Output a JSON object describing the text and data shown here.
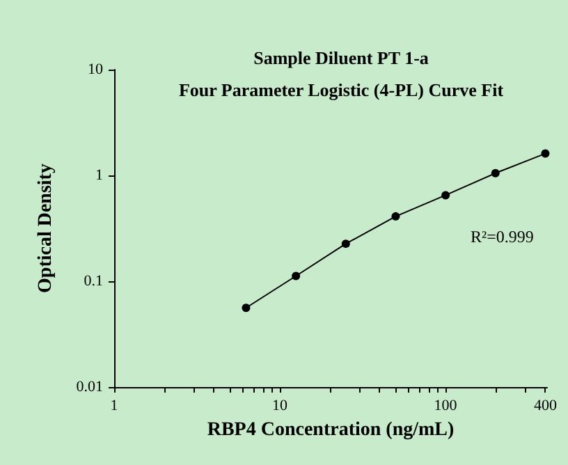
{
  "chart_data": {
    "type": "line",
    "title": "Sample Diluent PT 1-a",
    "subtitle": "Four Parameter Logistic (4-PL) Curve Fit",
    "xlabel": "RBP4 Concentration (ng/mL)",
    "ylabel": "Optical Density",
    "x": [
      6.25,
      12.5,
      25,
      50,
      100,
      200,
      400
    ],
    "series": [
      {
        "color": "#000000",
        "values": [
          0.056,
          0.112,
          0.226,
          0.41,
          0.65,
          1.05,
          1.61
        ]
      }
    ],
    "log": "xy",
    "xlim": [
      1,
      410
    ],
    "ylim": [
      0.01,
      10
    ],
    "xticks": [
      1,
      {
        "value": 2,
        "label": null
      },
      {
        "value": 3,
        "label": null
      },
      {
        "value": 4,
        "label": null
      },
      {
        "value": 5,
        "label": null
      },
      {
        "value": 6,
        "label": null
      },
      {
        "value": 7,
        "label": null
      },
      {
        "value": 8,
        "label": null
      },
      {
        "value": 9,
        "label": null
      },
      10,
      {
        "value": 20,
        "label": null
      },
      {
        "value": 30,
        "label": null
      },
      {
        "value": 40,
        "label": null
      },
      {
        "value": 50,
        "label": null
      },
      {
        "value": 60,
        "label": null
      },
      {
        "value": 70,
        "label": null
      },
      {
        "value": 80,
        "label": null
      },
      {
        "value": 90,
        "label": null
      },
      100,
      {
        "value": 200,
        "label": null
      },
      {
        "value": 300,
        "label": null
      },
      400
    ],
    "yticks": [
      0.01,
      0.1,
      1,
      10
    ],
    "annotations": [
      "R²=0.999"
    ],
    "marker": "circle",
    "line_style": "solid"
  }
}
